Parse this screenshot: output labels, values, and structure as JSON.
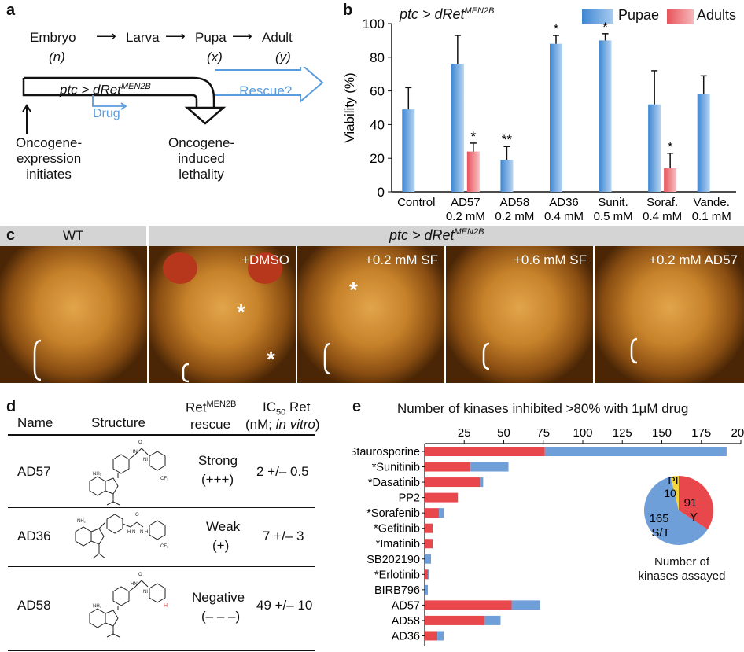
{
  "panel_a": {
    "letter": "a",
    "stages": [
      "Embryo",
      "Larva",
      "Pupa",
      "Adult"
    ],
    "stage_sub": [
      "(n)",
      "",
      "(x)",
      "(y)"
    ],
    "genotype": "ptc > dRet",
    "genotype_sup": "MEN2B",
    "rescue": "...Rescue?",
    "drug": "Drug",
    "left_note": [
      "Oncogene-",
      "expression",
      "initiates"
    ],
    "right_note": [
      "Oncogene-",
      "induced",
      "lethality"
    ]
  },
  "panel_b": {
    "letter": "b",
    "genotype": "ptc > dRet",
    "genotype_sup": "MEN2B",
    "legend": [
      "Pupae",
      "Adults"
    ],
    "colors": {
      "pupae": "#5b9bdc",
      "adults": "#e8525a"
    },
    "chart_data": {
      "type": "bar",
      "ylabel": "Viability (%)",
      "ylim": [
        0,
        100
      ],
      "yticks": [
        0,
        20,
        40,
        60,
        80,
        100
      ],
      "categories": [
        "Control",
        "AD57",
        "AD58",
        "AD36",
        "Sunit.",
        "Soraf.",
        "Vande."
      ],
      "category_sub": [
        "",
        "0.2 mM",
        "0.2 mM",
        "0.4 mM",
        "0.5 mM",
        "0.4 mM",
        "0.1 mM"
      ],
      "series": [
        {
          "name": "Pupae",
          "values": [
            49,
            76,
            19,
            88,
            90,
            52,
            58
          ],
          "err": [
            13,
            17,
            8,
            5,
            4,
            20,
            11
          ],
          "sig": [
            "",
            "",
            "**",
            "*",
            "*",
            "",
            ""
          ]
        },
        {
          "name": "Adults",
          "values": [
            null,
            24,
            null,
            null,
            null,
            14,
            null
          ],
          "err": [
            null,
            5,
            null,
            null,
            null,
            9,
            null
          ],
          "sig": [
            "",
            "*",
            "",
            "",
            "",
            "*",
            ""
          ]
        }
      ]
    }
  },
  "panel_c": {
    "letter": "c",
    "wt_header": "WT",
    "genotype": "ptc > dRet",
    "genotype_sup": "MEN2B",
    "photos": [
      "",
      "+DMSO",
      "+0.2 mM SF",
      "+0.6 mM SF",
      "+0.2 mM AD57"
    ]
  },
  "panel_d": {
    "letter": "d",
    "headers": {
      "name": "Name",
      "structure": "Structure",
      "rescue_a": "Ret",
      "rescue_sup": "MEN2B",
      "rescue_b": "rescue",
      "ic_a": "IC",
      "ic_sub": "50",
      "ic_b": " Ret",
      "ic_c": "(nM; ",
      "ic_d": "in vitro",
      "ic_e": ")"
    },
    "rows": [
      {
        "name": "AD57",
        "rescue": "Strong",
        "rescue_code": "(+++)",
        "ic50": "2 +/– 0.5"
      },
      {
        "name": "AD36",
        "rescue": "Weak",
        "rescue_code": "(+)",
        "ic50": "7 +/– 3"
      },
      {
        "name": "AD58",
        "rescue": "Negative",
        "rescue_code": "(– – –)",
        "ic50": "49 +/– 10"
      }
    ]
  },
  "panel_e": {
    "letter": "e",
    "colors": {
      "red": "#e8474c",
      "blue": "#6f9fd8",
      "yellow": "#f2d43c"
    },
    "chart_data": {
      "type": "bar",
      "orientation": "horizontal",
      "title": "Number of kinases inhibited >80% with 1µM drug",
      "xlim": [
        0,
        200
      ],
      "xticks": [
        25,
        50,
        75,
        100,
        125,
        150,
        175,
        200
      ],
      "categories": [
        "Staurosporine",
        "*Sunitinib",
        "*Dasatinib",
        "PP2",
        "*Sorafenib",
        "*Gefitinib",
        "*Imatinib",
        "SB202190",
        "*Erlotinib",
        "BIRB796",
        "AD57",
        "AD58",
        "AD36"
      ],
      "series": [
        {
          "name": "Y",
          "values": [
            76,
            29,
            35,
            21,
            9,
            5,
            5,
            0,
            2,
            0,
            55,
            38,
            8
          ]
        },
        {
          "name": "S/T",
          "values": [
            115,
            24,
            2,
            0,
            3,
            0,
            0,
            4,
            1,
            2,
            18,
            10,
            4
          ]
        }
      ]
    },
    "pie": {
      "title": [
        "Number of",
        "kinases assayed"
      ],
      "slices": [
        {
          "label": "Y",
          "value": 91
        },
        {
          "label": "S/T",
          "value": 165
        },
        {
          "label": "PI",
          "value": 10
        }
      ]
    }
  }
}
